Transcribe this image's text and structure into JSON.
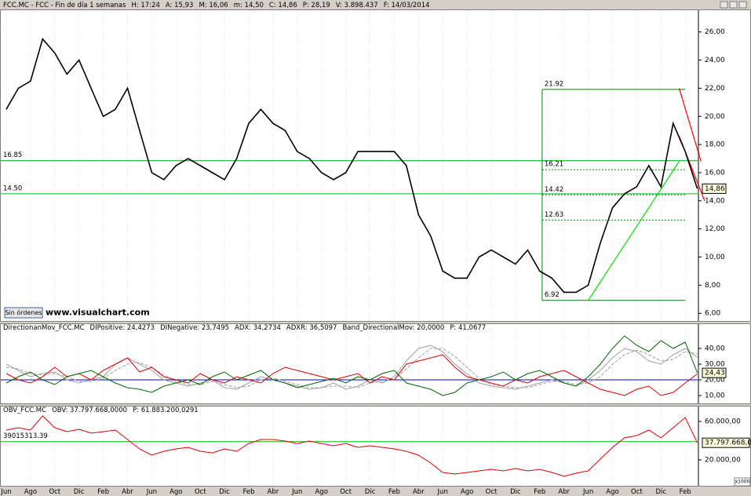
{
  "header": [
    "FCC.MC - FCC - Fin de día 1 semanas",
    "H: 17:24",
    "A: 15,93",
    "M: 16,06",
    "m: 14,50",
    "C: 14,86",
    "P: 28,19",
    "V: 3.898.437",
    "F: 14/03/2014"
  ],
  "button": "Sin órdenes",
  "watermark": "www.visualchart.com",
  "scale_note": "x1000",
  "chart_data": [
    {
      "type": "line",
      "color": "#000000",
      "values": [
        20.5,
        22,
        22.5,
        25.5,
        24.5,
        23,
        24,
        22,
        20,
        20.5,
        22,
        19,
        16,
        15.5,
        16.5,
        17,
        16.5,
        16,
        15.5,
        17,
        19.5,
        20.5,
        19.5,
        19,
        17.5,
        17,
        16,
        15.5,
        16,
        17.5,
        17.5,
        17.5,
        17.5,
        16.5,
        13,
        11.5,
        9,
        8.5,
        8.5,
        10,
        10.5,
        10,
        9.5,
        10.5,
        9,
        8.5,
        7.5,
        7.5,
        8,
        11,
        13.5,
        14.5,
        15,
        16.5,
        15,
        19.5,
        17.5,
        14.86
      ],
      "ylim": [
        5.4,
        27.6
      ],
      "yticks": [
        {
          "value": 6,
          "label": "6,00"
        },
        {
          "value": 8,
          "label": "8,00"
        },
        {
          "value": 10,
          "label": "10,00"
        },
        {
          "value": 12,
          "label": "12,00"
        },
        {
          "value": 14,
          "label": "14,00"
        },
        {
          "value": 16,
          "label": "16,00"
        },
        {
          "value": 18,
          "label": "18,00"
        },
        {
          "value": 20,
          "label": "20,00"
        },
        {
          "value": 22,
          "label": "22,00"
        },
        {
          "value": 24,
          "label": "24,00"
        },
        {
          "value": 26,
          "label": "26,00"
        }
      ],
      "last_value": {
        "value": 14.86,
        "label": "14,86"
      },
      "hlines": [
        {
          "value": 16.85,
          "label": "16.85",
          "color": "#00a000"
        },
        {
          "value": 14.5,
          "label": "14.50",
          "color": "#00c000"
        }
      ],
      "fib_levels": [
        {
          "value": 21.92,
          "label": "21.92"
        },
        {
          "value": 16.21,
          "label": "16.21"
        },
        {
          "value": 14.42,
          "label": "14.42"
        },
        {
          "value": 12.63,
          "label": "12.63"
        },
        {
          "value": 6.92,
          "label": "6.92"
        }
      ],
      "trend_lines": [
        {
          "color": "#00e000",
          "points": [
            [
              48,
              6.92
            ],
            [
              55.5,
              16.8
            ]
          ]
        },
        {
          "color": "#ff0000",
          "points": [
            [
              55.5,
              22
            ],
            [
              57.3,
              16.8
            ]
          ]
        },
        {
          "color": "#ff0000",
          "points": [
            [
              55.5,
              18.6
            ],
            [
              57.6,
              14
            ]
          ]
        }
      ]
    },
    {
      "type": "line",
      "title": "DirectionanMov_FCC.MC",
      "series": [
        {
          "name": "DIPositive: 24,4273",
          "color": "#006600",
          "values": [
            18,
            22,
            25,
            20,
            17,
            22,
            24,
            26,
            22,
            18,
            15,
            14,
            12,
            16,
            18,
            20,
            17,
            22,
            25,
            20,
            23,
            26,
            20,
            18,
            15,
            17,
            19,
            21,
            18,
            22,
            20,
            24,
            26,
            18,
            16,
            14,
            10,
            12,
            18,
            20,
            22,
            25,
            20,
            24,
            26,
            22,
            18,
            16,
            22,
            30,
            40,
            48,
            42,
            38,
            45,
            40,
            44,
            24.4273
          ]
        },
        {
          "name": "DINegative: 23,7495",
          "color": "#e00000",
          "values": [
            24,
            20,
            18,
            22,
            28,
            22,
            24,
            20,
            26,
            30,
            34,
            25,
            28,
            22,
            20,
            18,
            24,
            20,
            18,
            22,
            20,
            18,
            24,
            28,
            26,
            24,
            22,
            20,
            22,
            24,
            18,
            22,
            20,
            30,
            32,
            34,
            36,
            28,
            22,
            20,
            18,
            16,
            20,
            18,
            22,
            24,
            26,
            22,
            18,
            14,
            12,
            10,
            14,
            16,
            10,
            12,
            18,
            23.7495
          ]
        },
        {
          "name": "ADX: 34,2734",
          "color": "#a0a0a0",
          "values": [
            30,
            26,
            22,
            24,
            25,
            20,
            18,
            20,
            22,
            30,
            34,
            30,
            26,
            20,
            18,
            16,
            18,
            20,
            15,
            14,
            18,
            22,
            20,
            18,
            16,
            14,
            15,
            18,
            14,
            16,
            20,
            18,
            22,
            32,
            40,
            42,
            38,
            30,
            24,
            18,
            16,
            15,
            14,
            16,
            18,
            20,
            18,
            16,
            20,
            26,
            34,
            40,
            38,
            32,
            30,
            36,
            40,
            34.2734
          ]
        },
        {
          "name": "ADXR: 36,5097",
          "color": "#a0a0a0",
          "style": "dashed",
          "values": [
            28,
            27,
            24,
            23,
            24,
            22,
            19,
            19,
            21,
            26,
            30,
            31,
            28,
            23,
            19,
            17,
            17,
            19,
            17,
            15,
            16,
            20,
            21,
            19,
            17,
            15,
            15,
            16,
            16,
            15,
            18,
            19,
            20,
            27,
            34,
            40,
            40,
            35,
            28,
            21,
            17,
            16,
            15,
            15,
            17,
            19,
            19,
            17,
            18,
            22,
            30,
            36,
            39,
            36,
            32,
            33,
            38,
            36.5097
          ]
        }
      ],
      "hlines": [
        {
          "value": 20,
          "name": "Band_DirectionalMov: 20,0000",
          "color": "#0000cc"
        }
      ],
      "note": "P: 41,0677",
      "ylim": [
        4.5,
        56
      ],
      "yticks": [
        {
          "value": 10,
          "label": "10,00"
        },
        {
          "value": 20,
          "label": "20,00"
        },
        {
          "value": 30,
          "label": "30,00"
        },
        {
          "value": 40,
          "label": "40,00"
        }
      ],
      "last_value": {
        "value": 24.43,
        "label": "24,43"
      }
    },
    {
      "type": "line",
      "title": "OBV_FCC.MC",
      "series": [
        {
          "name": "OBV: 37.797.668,0000",
          "color": "#e00000",
          "values": [
            51000,
            53500,
            51000,
            65700,
            53500,
            49400,
            51800,
            47800,
            49400,
            51000,
            41200,
            31400,
            24900,
            29000,
            31400,
            33100,
            29000,
            27300,
            31400,
            29000,
            37100,
            41200,
            41200,
            39600,
            37100,
            39600,
            37100,
            34700,
            37100,
            33100,
            34700,
            33100,
            31400,
            29000,
            24900,
            16700,
            6900,
            5300,
            6900,
            8600,
            10200,
            8600,
            11000,
            8600,
            10200,
            6900,
            2900,
            6100,
            8600,
            20800,
            33100,
            42900,
            45300,
            51000,
            42900,
            53500,
            64100,
            37797.668
          ]
        }
      ],
      "note": "P: 61.883.200,0291",
      "hlines": [
        {
          "value": 39015.31339,
          "label": "39015313.39",
          "color": "#00c000"
        }
      ],
      "ylim": [
        -7755,
        76327
      ],
      "yticks": [
        {
          "value": 20000,
          "label": "20.000,00"
        },
        {
          "value": 60000,
          "label": "60.000,00"
        }
      ],
      "last_value": {
        "value": 37797.668,
        "label": "37.797.668,00"
      },
      "categories": [
        "Jun",
        null,
        "Ago",
        null,
        "Oct",
        null,
        "Dic",
        null,
        "Feb",
        null,
        "Abr",
        null,
        "Jun",
        null,
        "Ago",
        null,
        "Oct",
        null,
        "Dic",
        null,
        "Feb",
        null,
        "Abr",
        null,
        "Jun",
        null,
        "Ago",
        null,
        "Oct",
        null,
        "Dic",
        null,
        "Feb",
        null,
        "Abr",
        null,
        "Jun",
        null,
        "Ago",
        null,
        "Oct",
        null,
        "Dic",
        null,
        "Feb",
        null,
        "Abr",
        null,
        "Jun",
        null,
        "Ago",
        null,
        "Oct",
        null,
        "Dic",
        null,
        "Feb",
        null
      ]
    }
  ]
}
